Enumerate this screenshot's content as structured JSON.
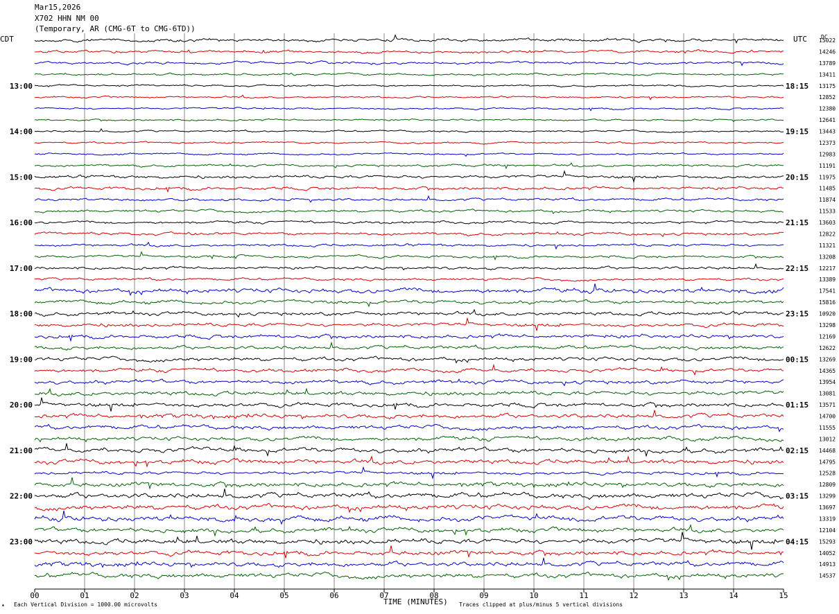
{
  "header": {
    "date": "Mar15,2026",
    "station": "X702 HHN NM 00",
    "network": "(Temporary, AR (CMG-6T to CMG-6TD))"
  },
  "labels": {
    "left_tz": "CDT",
    "right_tz": "UTC",
    "dc": "DC",
    "x_axis_title": "TIME (MINUTES)",
    "footer_left": "Each Vertical Division = 1000.00 microvolts",
    "footer_right": "Traces clipped at plus/minus 5 vertical divisions"
  },
  "colors": {
    "trace_cycle": [
      "#000000",
      "#d40000",
      "#0000c8",
      "#006000"
    ],
    "grid": "#888888"
  },
  "chart_data": {
    "type": "line",
    "title": "",
    "xlabel": "TIME (MINUTES)",
    "ylabel": "",
    "x_ticks": [
      "00",
      "01",
      "02",
      "03",
      "04",
      "05",
      "06",
      "07",
      "08",
      "09",
      "10",
      "11",
      "12",
      "13",
      "14",
      "15"
    ],
    "xlim": [
      0,
      15
    ],
    "traces_per_hour": 4,
    "trace_count": 48,
    "grid": true,
    "left_hour_labels": [
      "13:00",
      "14:00",
      "15:00",
      "16:00",
      "17:00",
      "18:00",
      "19:00",
      "20:00",
      "21:00",
      "22:00",
      "23:00"
    ],
    "right_hour_labels": [
      "18:15",
      "19:15",
      "20:15",
      "21:15",
      "22:15",
      "23:15",
      "00:15",
      "01:15",
      "02:15",
      "03:15",
      "04:15"
    ],
    "dc_offsets": [
      15022,
      14246,
      13789,
      13411,
      13175,
      12852,
      12380,
      12641,
      13443,
      12373,
      12983,
      11191,
      11975,
      11485,
      11874,
      11533,
      13603,
      12822,
      11321,
      13208,
      12217,
      13389,
      17541,
      15816,
      10920,
      13298,
      12169,
      12622,
      13269,
      14365,
      13954,
      13081,
      13571,
      14700,
      11555,
      13012,
      14468,
      14795,
      12528,
      12809,
      13299,
      13697,
      13319,
      12104,
      15293,
      14052,
      14913,
      14537
    ],
    "activity_level": [
      0.6,
      0.5,
      0.5,
      0.4,
      0.35,
      0.35,
      0.35,
      0.35,
      0.35,
      0.35,
      0.35,
      0.45,
      0.6,
      0.6,
      0.5,
      0.5,
      0.5,
      0.55,
      0.5,
      0.5,
      0.55,
      0.5,
      0.9,
      0.7,
      0.7,
      0.7,
      0.75,
      0.7,
      0.75,
      0.7,
      0.75,
      0.8,
      0.8,
      0.85,
      0.8,
      0.8,
      0.9,
      0.9,
      0.6,
      0.9,
      1.0,
      1.0,
      1.0,
      0.9,
      1.0,
      0.9,
      0.9,
      0.9
    ]
  }
}
